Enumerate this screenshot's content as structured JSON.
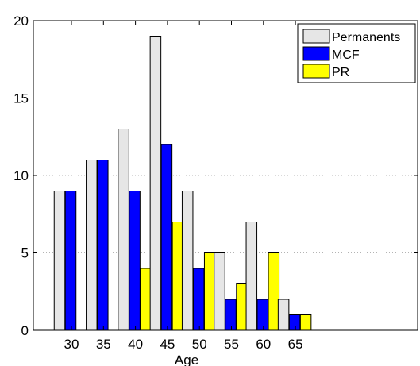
{
  "chart_data": {
    "type": "bar",
    "xlabel": "Age",
    "ylabel": "",
    "ylim": [
      0,
      20
    ],
    "yticks": [
      0,
      5,
      10,
      15,
      20
    ],
    "categories": [
      "30",
      "35",
      "40",
      "45",
      "50",
      "55",
      "60",
      "65"
    ],
    "series": [
      {
        "name": "Permanents",
        "color": "#e6e6e6",
        "values": [
          9,
          11,
          13,
          19,
          9,
          5,
          7,
          2
        ]
      },
      {
        "name": "MCF",
        "color": "#0000ff",
        "values": [
          9,
          11,
          9,
          12,
          4,
          2,
          2,
          1
        ]
      },
      {
        "name": "PR",
        "color": "#ffff00",
        "values": [
          0,
          0,
          4,
          7,
          5,
          3,
          5,
          1
        ]
      }
    ],
    "grid": "horizontal dotted",
    "legend_position": "top-right"
  }
}
